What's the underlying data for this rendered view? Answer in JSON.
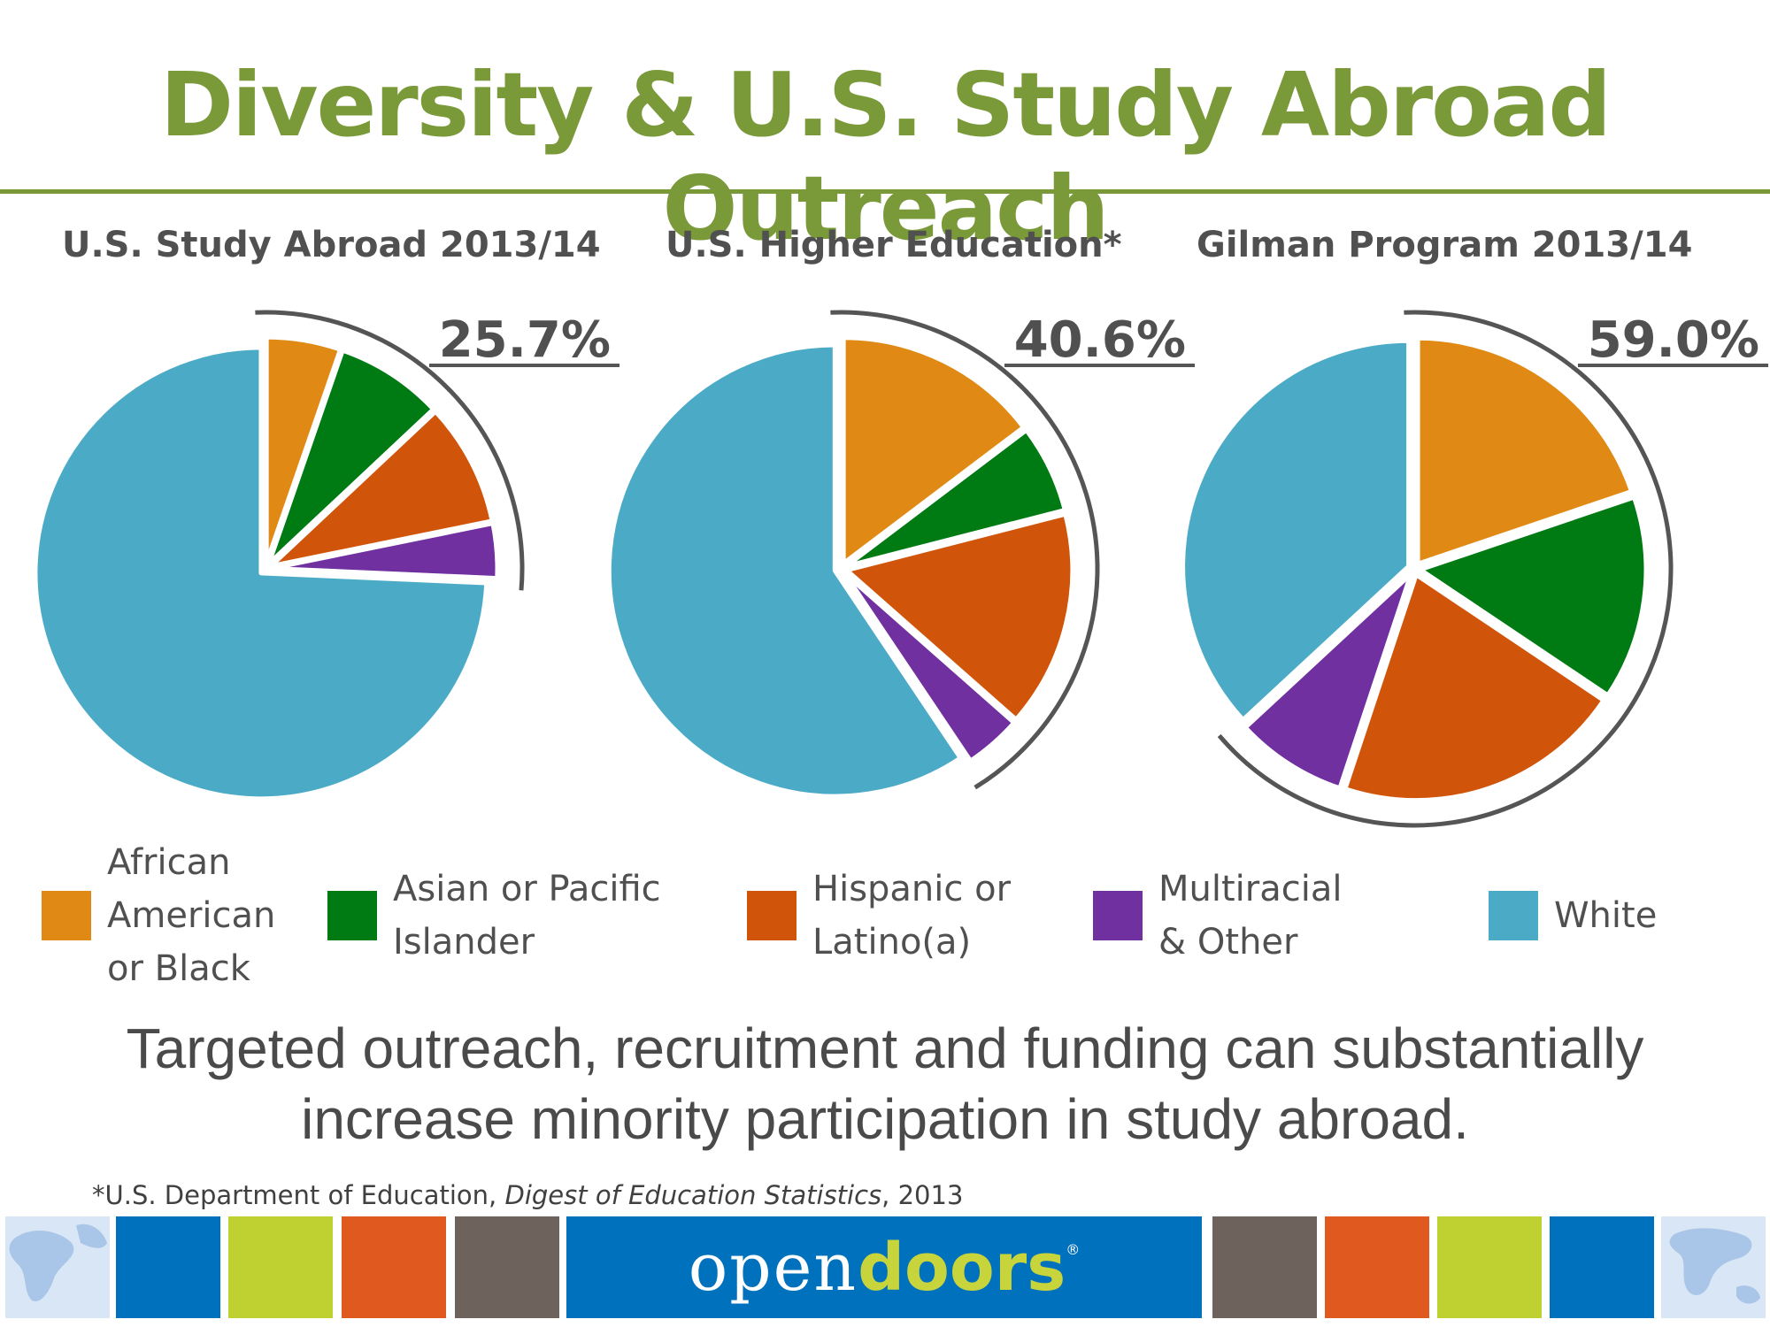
{
  "title": "Diversity & U.S. Study Abroad Outreach",
  "colors": {
    "title": "#7a9a3a",
    "rule": "#7a9a3a",
    "arc": "#555555",
    "slice_border": "#ffffff"
  },
  "legend": [
    {
      "label": "African\nAmerican\nor Black",
      "color": "#e08a15"
    },
    {
      "label": "Asian or Pacific\nIslander",
      "color": "#007a12"
    },
    {
      "label": "Hispanic or\nLatino(a)",
      "color": "#d0540a"
    },
    {
      "label": "Multiracial\n& Other",
      "color": "#7030a0"
    },
    {
      "label": "White",
      "color": "#4babc6"
    }
  ],
  "chart_data": [
    {
      "type": "pie",
      "title": "U.S. Study Abroad 2013/14",
      "highlight_label": "25.7%",
      "categories": [
        "African American or Black",
        "Asian or Pacific Islander",
        "Hispanic or Latino(a)",
        "Multiracial & Other",
        "White"
      ],
      "values": [
        5.3,
        7.7,
        8.8,
        3.9,
        74.3
      ]
    },
    {
      "type": "pie",
      "title": "U.S. Higher Education*",
      "highlight_label": "40.6%",
      "categories": [
        "African American or Black",
        "Asian or Pacific Islander",
        "Hispanic or Latino(a)",
        "Multiracial & Other",
        "White"
      ],
      "values": [
        14.7,
        6.3,
        15.5,
        4.1,
        59.4
      ]
    },
    {
      "type": "pie",
      "title": "Gilman Program 2013/14",
      "highlight_label": "59.0%",
      "categories": [
        "African American or Black",
        "Asian or Pacific Islander",
        "Hispanic or Latino(a)",
        "Multiracial & Other",
        "White"
      ],
      "values": [
        19.8,
        14.6,
        20.7,
        8.0,
        36.9
      ]
    }
  ],
  "subtitle_line1": "Targeted outreach, recruitment and funding can substantially",
  "subtitle_line2": "increase minority participation in study abroad.",
  "footnote": {
    "prefix": "*U.S. Department of Education, ",
    "italic": "Digest of Education Statistics",
    "suffix": ", 2013"
  },
  "footer": {
    "brand_open": "open",
    "brand_doors": "doors",
    "brand_reg": "®",
    "block_colors": [
      "#0071bc",
      "#bfd130",
      "#e05a1f",
      "#6e625c",
      "#6e625c",
      "#e05a1f",
      "#bfd130",
      "#0071bc"
    ],
    "brand_bg": "#0071bc",
    "map_color": "#a9c6e8"
  }
}
